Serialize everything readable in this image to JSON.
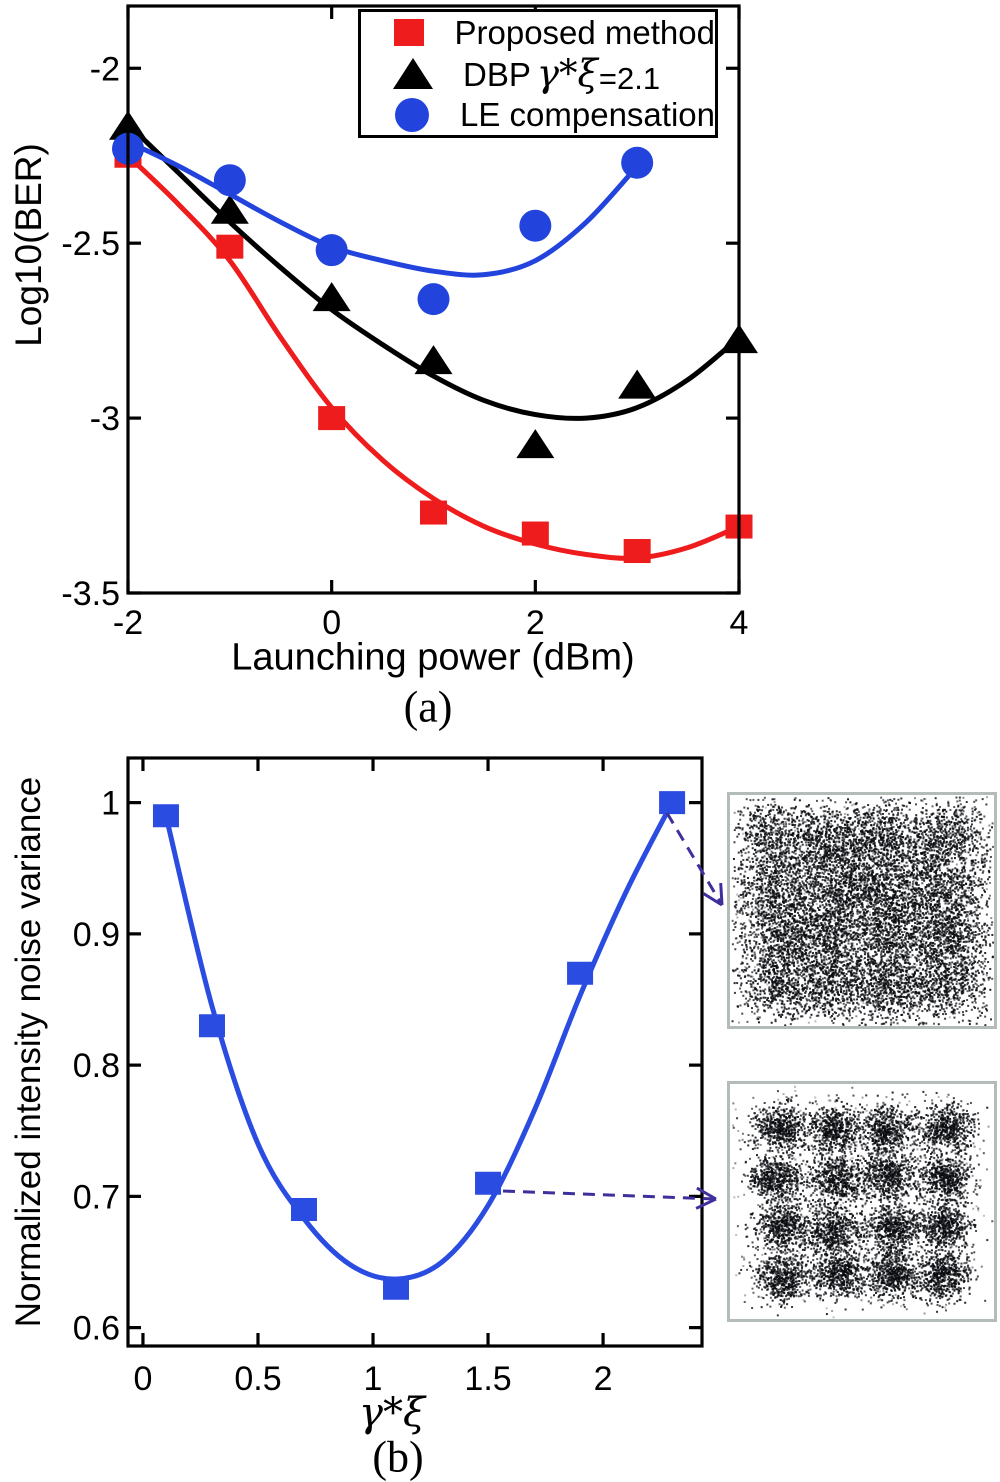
{
  "accent_colors": {
    "red": "#ee1c1c",
    "black": "#000000",
    "blue_top": "#2244dd",
    "blue_bottom": "#2a4ce0",
    "arrow": "#3e309c",
    "inset_border": "#b4bcb8"
  },
  "legend": {
    "entries": [
      {
        "marker": "square",
        "color": "#ee1c1c",
        "text": "Proposed method"
      },
      {
        "marker": "triangle",
        "color": "#000000",
        "text": "DBP",
        "symbol": "γ*ξ",
        "suffix": "=2.1"
      },
      {
        "marker": "circle",
        "color": "#2244dd",
        "text": "LE compensation"
      }
    ]
  },
  "chart_data": [
    {
      "type": "scatter",
      "panel": "a",
      "caption": "(a)",
      "xlabel": "Launching power (dBm)",
      "ylabel": "Log10(BER)",
      "xlim": [
        -2,
        4
      ],
      "ylim": [
        -3.5,
        -1.822
      ],
      "xticks": [
        -2,
        0,
        2,
        4
      ],
      "xtick_labels": [
        "-2",
        "0",
        "2",
        "4"
      ],
      "yticks": [
        -2,
        -2.5,
        -3,
        -3.5
      ],
      "ytick_labels": [
        "-2",
        "-2.5",
        "-3",
        "-3.5"
      ],
      "grid": false,
      "legend_position": "top-right",
      "series": [
        {
          "name": "Proposed method",
          "marker": "square",
          "color": "#ee1c1c",
          "x": [
            -2,
            -1,
            0,
            1,
            2,
            3,
            4
          ],
          "y": [
            -2.25,
            -2.51,
            -3.0,
            -3.27,
            -3.33,
            -3.38,
            -3.31
          ],
          "fit_curve": {
            "x": [
              -2,
              -1.5,
              -1,
              -0.5,
              0,
              0.5,
              1,
              1.5,
              2,
              2.5,
              3,
              3.5,
              4
            ],
            "y": [
              -2.25,
              -2.39,
              -2.55,
              -2.77,
              -2.97,
              -3.12,
              -3.23,
              -3.31,
              -3.36,
              -3.39,
              -3.4,
              -3.37,
              -3.31
            ]
          }
        },
        {
          "name": "DBP γ*ξ=2.1",
          "marker": "triangle",
          "color": "#000000",
          "x": [
            -2,
            -1,
            0,
            1,
            2,
            3,
            4
          ],
          "y": [
            -2.17,
            -2.41,
            -2.66,
            -2.84,
            -3.08,
            -2.91,
            -2.78
          ],
          "fit_curve": {
            "x": [
              -2,
              -1.5,
              -1,
              -0.5,
              0,
              0.5,
              1,
              1.5,
              2,
              2.5,
              3,
              3.5,
              4
            ],
            "y": [
              -2.16,
              -2.3,
              -2.44,
              -2.57,
              -2.69,
              -2.79,
              -2.88,
              -2.95,
              -2.99,
              -3.0,
              -2.97,
              -2.89,
              -2.77
            ]
          }
        },
        {
          "name": "LE compensation",
          "marker": "circle",
          "color": "#2244dd",
          "x": [
            -2,
            -1,
            0,
            1,
            2,
            3
          ],
          "y": [
            -2.23,
            -2.32,
            -2.52,
            -2.66,
            -2.45,
            -2.27
          ],
          "fit_curve": {
            "x": [
              -2,
              -1.5,
              -1,
              -0.5,
              0,
              0.5,
              1,
              1.5,
              2,
              2.5,
              3
            ],
            "y": [
              -2.21,
              -2.28,
              -2.36,
              -2.44,
              -2.51,
              -2.55,
              -2.58,
              -2.59,
              -2.55,
              -2.44,
              -2.28
            ]
          }
        }
      ]
    },
    {
      "type": "scatter",
      "panel": "b",
      "caption": "(b)",
      "xlabel": "γ*ξ",
      "ylabel": "Normalized intensity noise variance",
      "xlim": [
        -0.065,
        2.43
      ],
      "ylim": [
        0.586,
        1.034
      ],
      "xticks": [
        0,
        0.5,
        1,
        1.5,
        2
      ],
      "xtick_labels": [
        "0",
        "0.5",
        "1",
        "1.5",
        "2"
      ],
      "yticks": [
        1,
        0.9,
        0.8,
        0.7,
        0.6
      ],
      "ytick_labels": [
        "1",
        "0.9",
        "0.8",
        "0.7",
        "0.6"
      ],
      "grid": false,
      "series": [
        {
          "name": "Normalized intensity noise variance",
          "marker": "square",
          "color": "#2a4ce0",
          "x": [
            0.1,
            0.3,
            0.7,
            1.1,
            1.5,
            1.9,
            2.3
          ],
          "y": [
            0.99,
            0.83,
            0.69,
            0.63,
            0.71,
            0.87,
            1.0
          ],
          "fit_curve": {
            "x": [
              0.1,
              0.3,
              0.5,
              0.7,
              0.9,
              1.1,
              1.3,
              1.5,
              1.7,
              1.9,
              2.1,
              2.3
            ],
            "y": [
              0.99,
              0.845,
              0.74,
              0.683,
              0.648,
              0.637,
              0.65,
              0.693,
              0.765,
              0.853,
              0.932,
              1.0
            ]
          }
        }
      ],
      "annotations": [
        {
          "type": "dashed-arrow",
          "from_point": [
            2.3,
            1.0
          ],
          "to": "inset-high-noise"
        },
        {
          "type": "dashed-arrow",
          "from_point": [
            1.5,
            0.71
          ],
          "to": "inset-low-noise"
        }
      ]
    }
  ],
  "insets": [
    {
      "id": "inset-high-noise",
      "description": "16-QAM constellation, heavily noise-blurred (clusters merged)"
    },
    {
      "id": "inset-low-noise",
      "description": "16-QAM constellation, 4x4 clusters clearly separated"
    }
  ]
}
